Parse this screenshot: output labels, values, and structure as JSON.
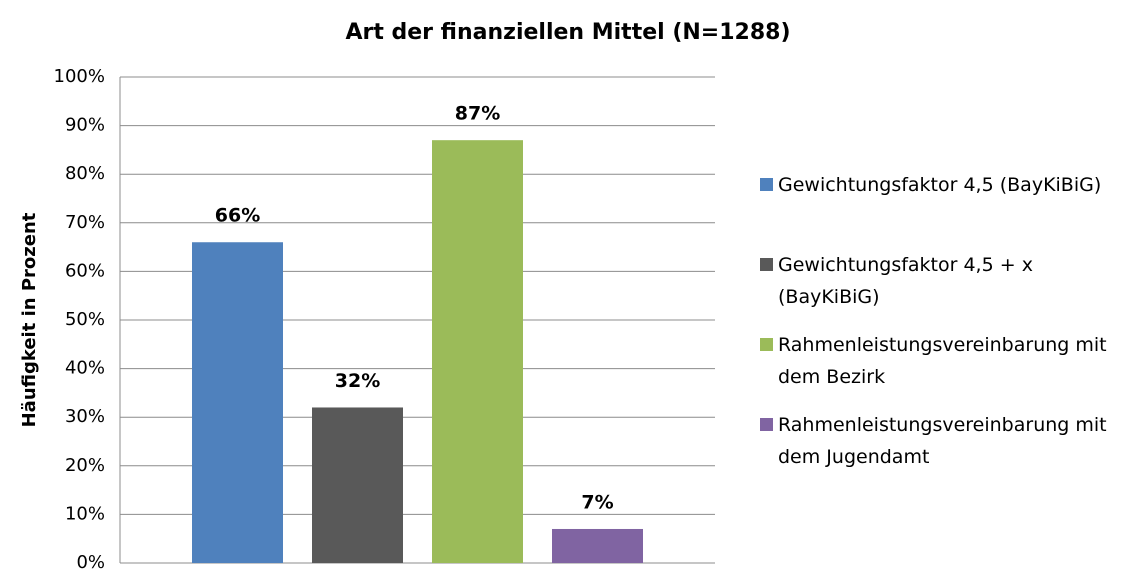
{
  "chart_data": {
    "type": "bar",
    "title": "Art der finanziellen Mittel (N=1288)",
    "y_label": "Häufigkeit in Prozent",
    "categories": [
      null
    ],
    "series": [
      {
        "name": "Gewichtungsfaktor 4,5 (BayKiBiG)",
        "color": "#4f81bd",
        "values": [
          66
        ],
        "value_labels": [
          "66%"
        ]
      },
      {
        "name": "Gewichtungsfaktor 4,5 + x (BayKiBiG)",
        "color": "#595959",
        "values": [
          32
        ],
        "value_labels": [
          "32%"
        ]
      },
      {
        "name": "Rahmenleistungsvereinbarung mit dem Bezirk",
        "color": "#9bbb59",
        "values": [
          87
        ],
        "value_labels": [
          "87%"
        ]
      },
      {
        "name": "Rahmenleistungsvereinbarung mit dem Jugendamt",
        "color": "#8064a2",
        "values": [
          7
        ],
        "value_labels": [
          "7%"
        ]
      }
    ],
    "ylim": [
      0,
      100
    ],
    "yticks": [
      {
        "value": 0,
        "label": "0%"
      },
      {
        "value": 10,
        "label": "10%"
      },
      {
        "value": 20,
        "label": "20%"
      },
      {
        "value": 30,
        "label": "30%"
      },
      {
        "value": 40,
        "label": "40%"
      },
      {
        "value": 50,
        "label": "50%"
      },
      {
        "value": 60,
        "label": "60%"
      },
      {
        "value": 70,
        "label": "70%"
      },
      {
        "value": 80,
        "label": "80%"
      },
      {
        "value": 90,
        "label": "90%"
      },
      {
        "value": 100,
        "label": "100%"
      }
    ],
    "grid": true,
    "legend": "right"
  }
}
